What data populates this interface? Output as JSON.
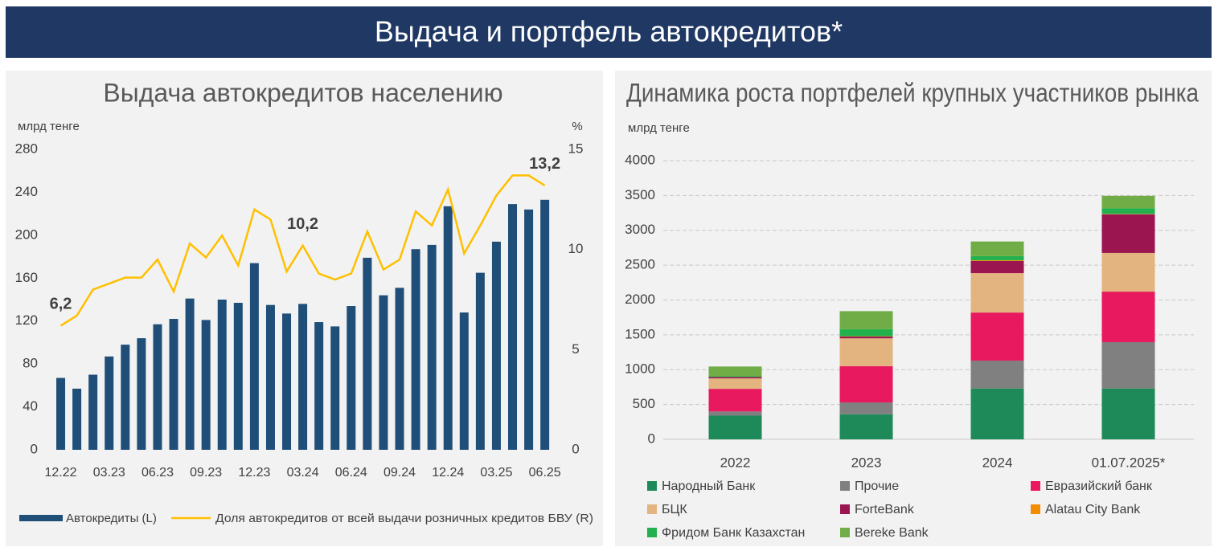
{
  "header": {
    "title": "Выдача и портфель автокредитов*"
  },
  "chart_data": [
    {
      "type": "combo",
      "title": "Выдача автокредитов населению",
      "y_label": "млрд тенге",
      "y2_label": "%",
      "categories": [
        "12.22",
        null,
        null,
        "03.23",
        null,
        null,
        "06.23",
        null,
        null,
        "09.23",
        null,
        null,
        "12.23",
        null,
        null,
        "03.24",
        null,
        null,
        "06.24",
        null,
        null,
        "09.24",
        null,
        null,
        "12.24",
        null,
        null,
        "03.25",
        null,
        null,
        "06.25"
      ],
      "ylim": [
        0,
        280
      ],
      "yticks": [
        0,
        40,
        80,
        120,
        160,
        200,
        240,
        280
      ],
      "y2lim": [
        0,
        15
      ],
      "y2ticks": [
        0,
        5,
        10,
        15
      ],
      "series": [
        {
          "name": "Автокредиты (L)",
          "type": "bar",
          "color": "#1f4e79",
          "values": [
            67,
            57,
            70,
            87,
            98,
            104,
            117,
            122,
            141,
            121,
            140,
            137,
            174,
            135,
            127,
            136,
            119,
            115,
            134,
            179,
            144,
            151,
            187,
            191,
            227,
            128,
            165,
            194,
            229,
            224,
            233
          ]
        },
        {
          "name": "Доля автокредитов от всей выдачи розничных кредитов БВУ (R)",
          "type": "line",
          "axis": "y2",
          "color": "#ffc000",
          "values": [
            6.2,
            6.7,
            8.0,
            8.3,
            8.6,
            8.6,
            9.5,
            7.9,
            10.3,
            9.6,
            10.7,
            9.2,
            12.0,
            11.5,
            8.9,
            10.2,
            8.8,
            8.5,
            8.8,
            10.9,
            9.0,
            9.5,
            11.9,
            11.2,
            13.0,
            9.8,
            11.2,
            12.7,
            13.7,
            13.7,
            13.2
          ],
          "value_labels": [
            "6,2",
            null,
            null,
            null,
            null,
            null,
            null,
            null,
            null,
            null,
            null,
            null,
            null,
            null,
            null,
            "10,2",
            null,
            null,
            null,
            null,
            null,
            null,
            null,
            null,
            null,
            null,
            null,
            null,
            null,
            null,
            "13,2"
          ]
        }
      ]
    },
    {
      "type": "stacked_bar",
      "title": "Динамика роста портфелей крупных участников рынка",
      "y_label": "млрд тенге",
      "categories": [
        "2022",
        "2023",
        "2024",
        "01.07.2025*"
      ],
      "ylim": [
        0,
        4000
      ],
      "yticks": [
        0,
        500,
        1000,
        1500,
        2000,
        2500,
        3000,
        3500,
        4000
      ],
      "grid": true,
      "series": [
        {
          "name": "Народный Банк",
          "color": "#1e8a5a",
          "values": [
            340,
            360,
            730,
            730
          ]
        },
        {
          "name": "Прочие",
          "color": "#808080",
          "values": [
            60,
            170,
            400,
            665
          ]
        },
        {
          "name": "Евразийский банк",
          "color": "#e8195f",
          "values": [
            325,
            520,
            690,
            725
          ]
        },
        {
          "name": "БЦК",
          "color": "#e3b47f",
          "values": [
            150,
            400,
            565,
            555
          ]
        },
        {
          "name": "ForteBank",
          "color": "#9b1550",
          "values": [
            20,
            25,
            175,
            555
          ]
        },
        {
          "name": "Alatau City Bank",
          "color": "#f28c00",
          "values": [
            0,
            5,
            10,
            5
          ]
        },
        {
          "name": "Фридом Банк Казахстан",
          "color": "#22b14c",
          "values": [
            10,
            100,
            60,
            80
          ]
        },
        {
          "name": "Bereke Bank",
          "color": "#70ad47",
          "values": [
            140,
            260,
            210,
            180
          ]
        }
      ]
    }
  ]
}
